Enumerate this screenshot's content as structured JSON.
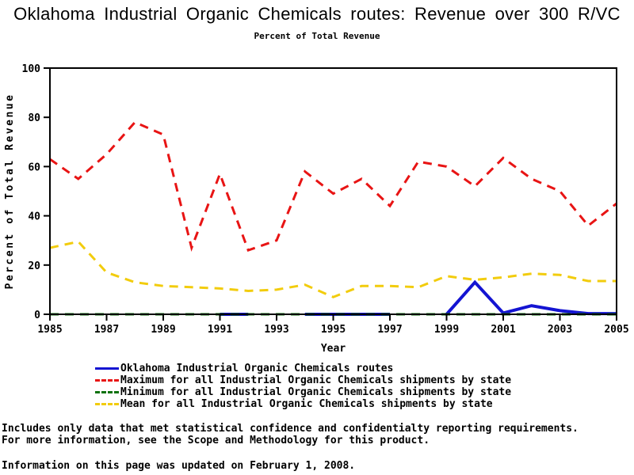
{
  "page": {
    "title": "Oklahoma Industrial Organic Chemicals routes: Revenue over 300 R/VC",
    "subtitle": "Percent of Total Revenue"
  },
  "chart_data": {
    "type": "line",
    "title": "Oklahoma Industrial Organic Chemicals routes: Revenue over 300 R/VC",
    "subtitle": "Percent of Total Revenue",
    "xlabel": "Year",
    "ylabel": "Percent of Total Revenue",
    "ylim": [
      0,
      100
    ],
    "yticks": [
      0,
      20,
      40,
      60,
      80,
      100
    ],
    "xticks": [
      1985,
      1987,
      1989,
      1991,
      1993,
      1995,
      1997,
      1999,
      2001,
      2003,
      2005
    ],
    "x": [
      1985,
      1986,
      1987,
      1988,
      1989,
      1990,
      1991,
      1992,
      1993,
      1994,
      1995,
      1996,
      1997,
      1998,
      1999,
      2000,
      2001,
      2002,
      2003,
      2004,
      2005
    ],
    "grid": false,
    "legend_position": "bottom",
    "frame_color": "#000000",
    "series": [
      {
        "name": "Oklahoma Industrial Organic Chemicals routes",
        "color": "#1414d2",
        "style": "solid",
        "values": [
          null,
          null,
          null,
          null,
          null,
          null,
          0,
          0,
          null,
          0,
          0,
          0,
          0,
          null,
          0,
          13,
          0.5,
          3.5,
          1.5,
          0.3,
          0.3
        ]
      },
      {
        "name": "Maximum for all Industrial Organic Chemicals shipments by state",
        "color": "#e81414",
        "style": "dashed",
        "values": [
          63,
          55,
          65,
          78,
          73,
          27,
          57,
          26,
          30,
          58,
          49,
          55,
          44,
          62,
          60,
          52,
          63.5,
          55,
          50,
          36,
          45
        ]
      },
      {
        "name": "Minimum for all Industrial Organic Chemicals shipments by state",
        "color": "#0d720d",
        "style": "dashed",
        "values": [
          0,
          0,
          0,
          0,
          0,
          0,
          0,
          0,
          0,
          0,
          0,
          0,
          0,
          0,
          0,
          0,
          0,
          0,
          0,
          0,
          0
        ]
      },
      {
        "name": "Mean for all Industrial Organic Chemicals shipments by state",
        "color": "#f2cc0d",
        "style": "dashed",
        "values": [
          27,
          29.5,
          17,
          13,
          11.5,
          11,
          10.5,
          9.5,
          10,
          12,
          7,
          11.5,
          11.5,
          11,
          15.5,
          14,
          15,
          16.5,
          16,
          13.5,
          13.5
        ]
      }
    ]
  },
  "footnotes": {
    "line1": "Includes only data that met statistical confidence and confidentialty reporting requirements.",
    "line2": "For more information, see the Scope and Methodology for this product.",
    "updated": "Information on this page was updated on February 1, 2008."
  }
}
